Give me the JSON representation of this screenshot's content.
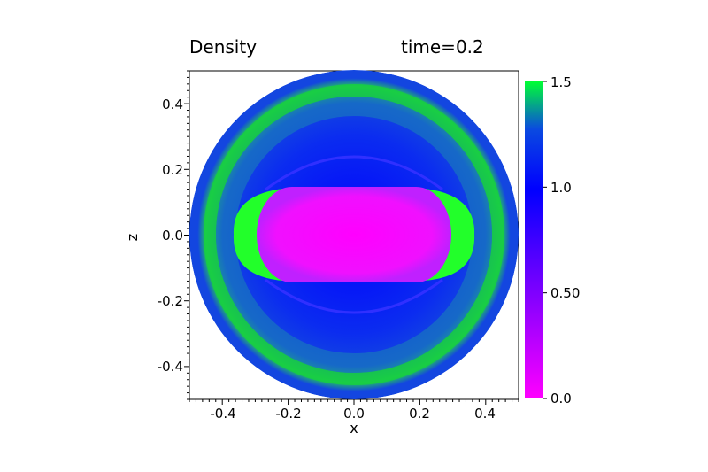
{
  "chart_data": {
    "type": "heatmap",
    "title": "Density",
    "subtitle": "time=0.2",
    "xlabel": "x",
    "ylabel": "z",
    "xlim": [
      -0.5,
      0.5
    ],
    "ylim": [
      -0.5,
      0.5
    ],
    "x_ticks": [
      "-0.4",
      "-0.2",
      "0.0",
      "0.2",
      "0.4"
    ],
    "x_tick_values": [
      -0.4,
      -0.2,
      0.0,
      0.2,
      0.4
    ],
    "y_ticks": [
      "0.4",
      "0.2",
      "0.0",
      "-0.2",
      "-0.4"
    ],
    "y_tick_values": [
      0.4,
      0.2,
      0.0,
      -0.2,
      -0.4
    ],
    "colorbar": {
      "range": [
        0.0,
        1.5
      ],
      "tick_labels": [
        "1.5",
        "1.0",
        "0.50",
        "0.0"
      ],
      "tick_values": [
        1.5,
        1.0,
        0.5,
        0.0
      ],
      "colors": [
        "#ff00ff",
        "#0000ff",
        "#00ff00"
      ]
    },
    "field": {
      "domain": "disc",
      "radius": 0.5,
      "background_value": 0.95,
      "regions": [
        {
          "name": "low-density core",
          "shape": "rounded-rectangle",
          "x_range": [
            -0.3,
            0.3
          ],
          "z_range": [
            -0.14,
            0.14
          ],
          "value": 0.1
        },
        {
          "name": "dense shell",
          "shape": "ring",
          "radius": 0.45,
          "value": 1.4
        },
        {
          "name": "shock lobes",
          "shape": "crescents",
          "x": [
            -0.33,
            0.33
          ],
          "z_range": [
            -0.13,
            0.13
          ],
          "value": 1.5
        }
      ]
    },
    "grid": false
  }
}
